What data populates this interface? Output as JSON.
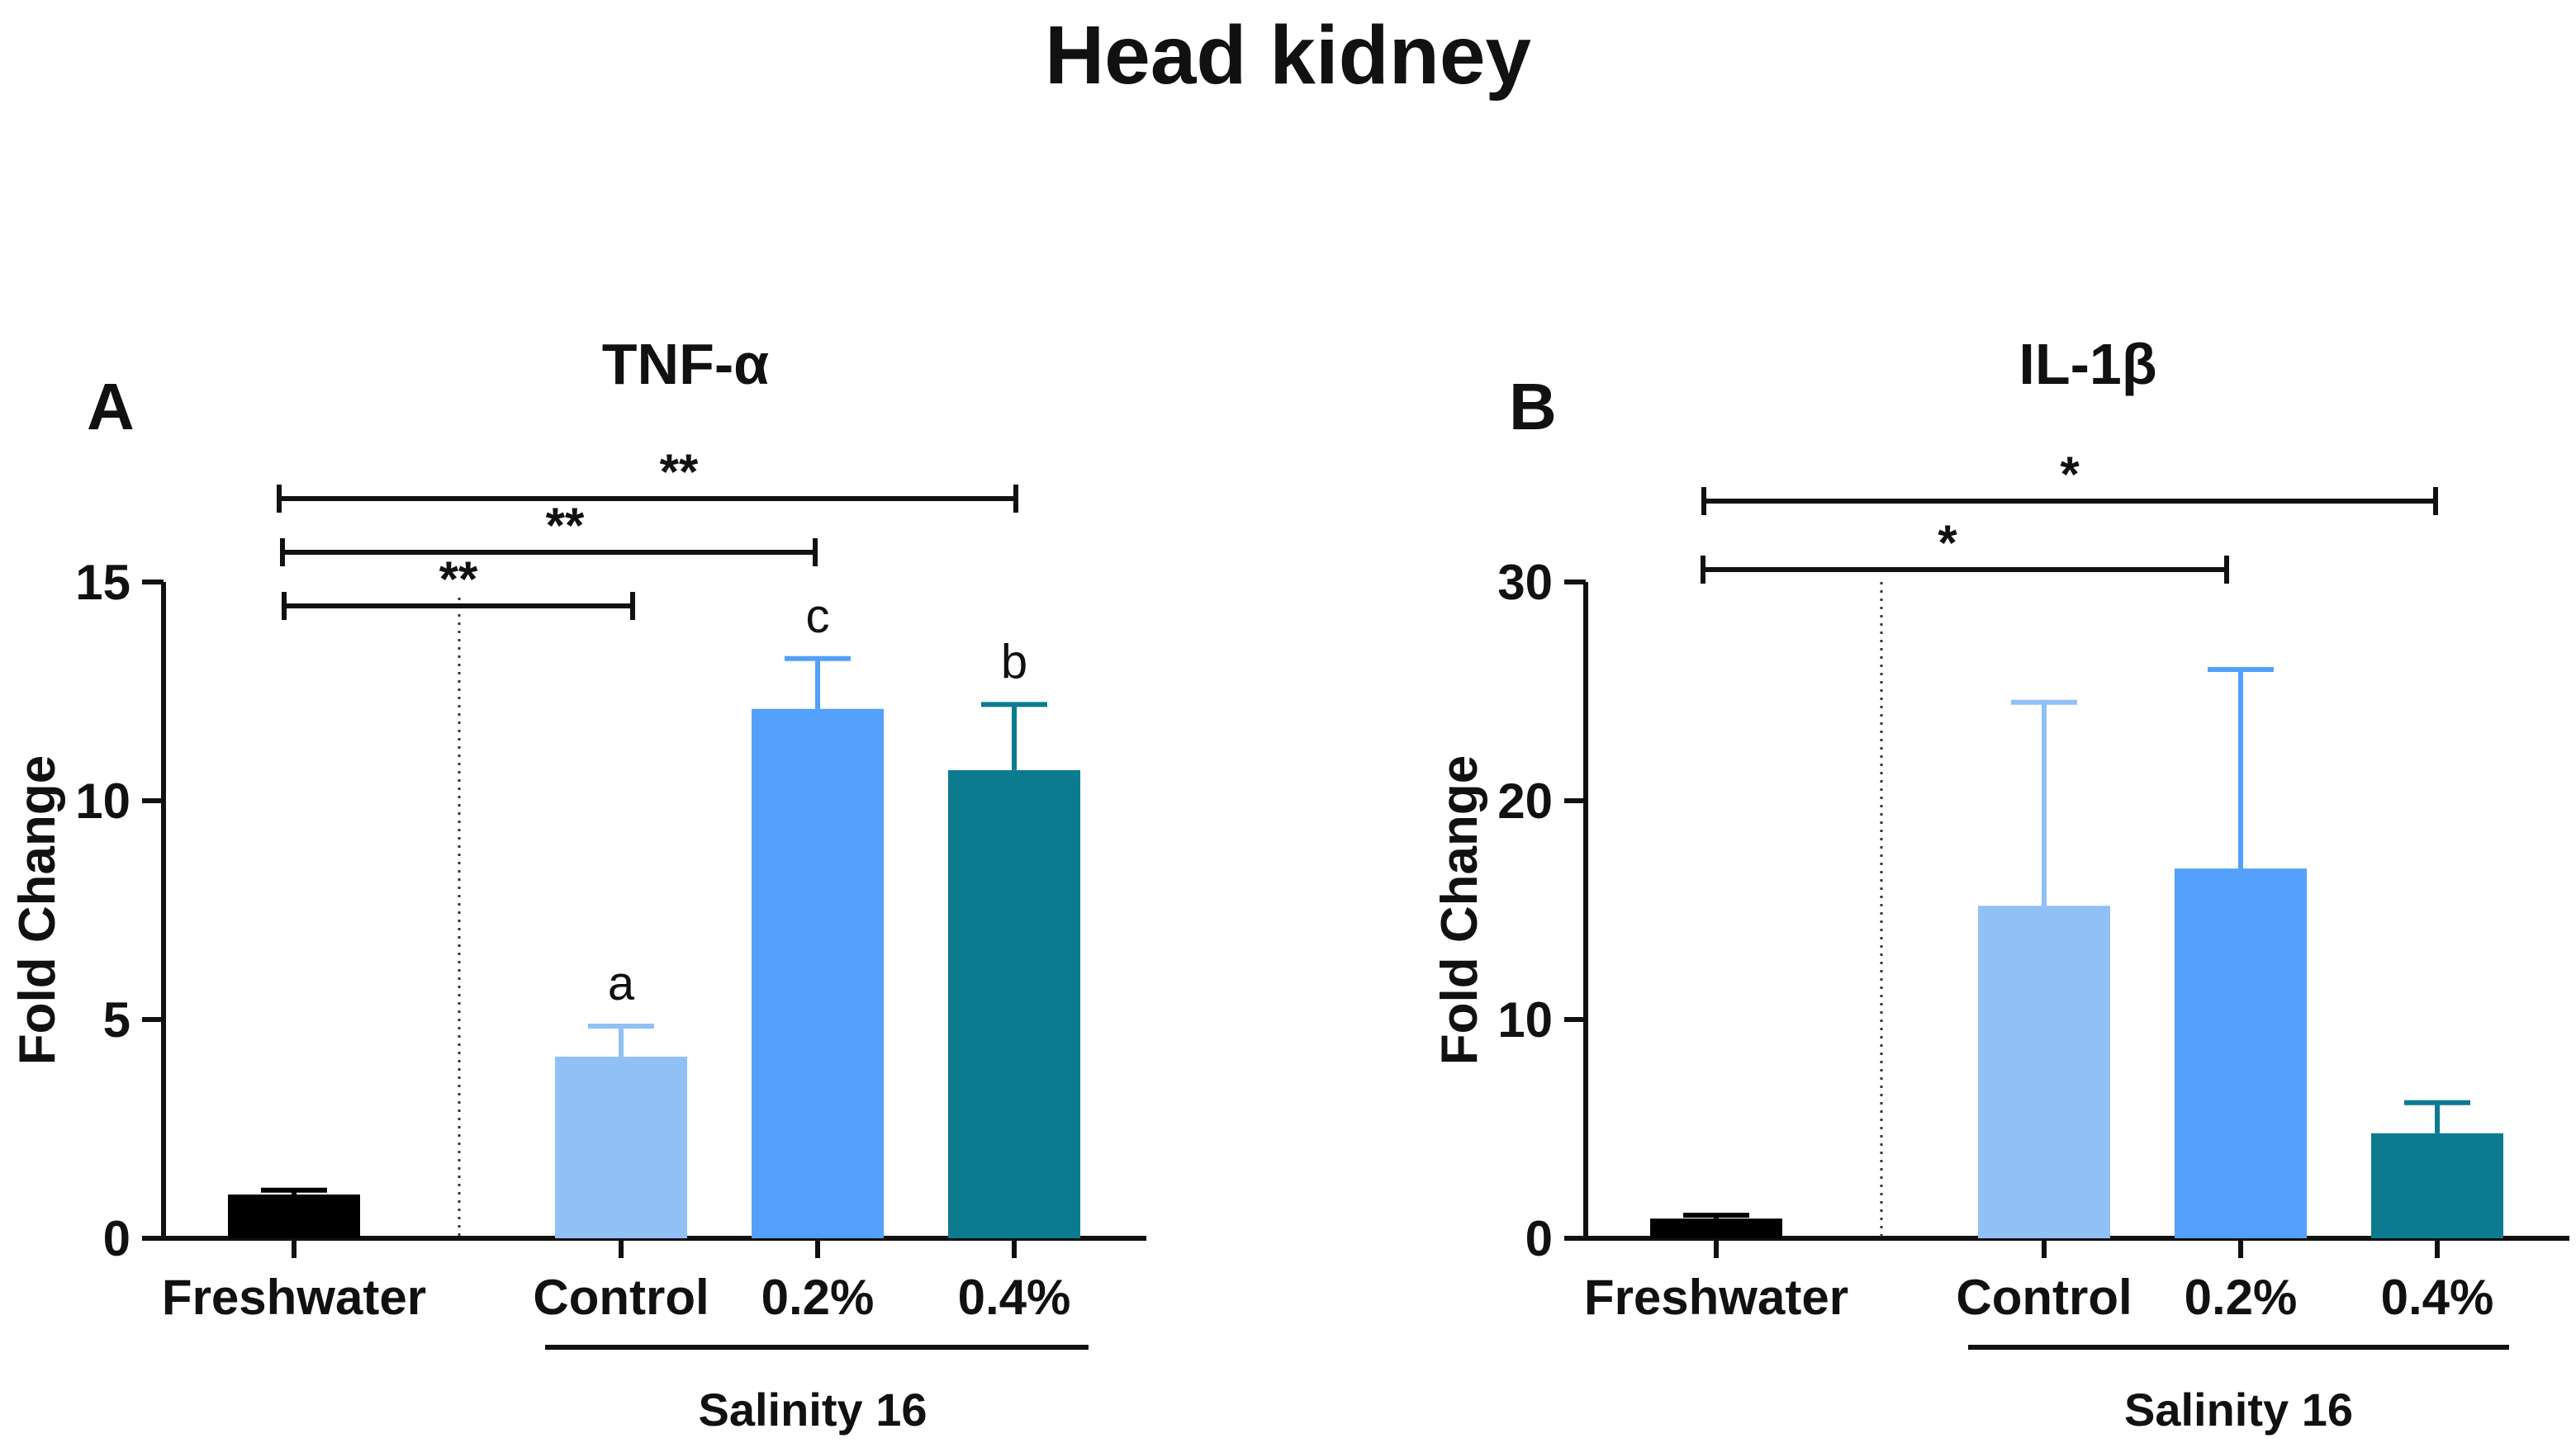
{
  "figure_title": "Head kidney",
  "chart_data": [
    {
      "type": "bar",
      "panel_label": "A",
      "title": "TNF-α",
      "ylabel": "Fold Change",
      "xlabel": "",
      "ylim": [
        0,
        15
      ],
      "yticks": [
        0,
        5,
        10,
        15
      ],
      "categories": [
        "Freshwater",
        "Control",
        "0.2%",
        "0.4%"
      ],
      "values": [
        1.0,
        4.15,
        12.1,
        10.7
      ],
      "errors": [
        0.1,
        0.7,
        1.15,
        1.5
      ],
      "colors": [
        "#000000",
        "#90c0f6",
        "#52a0f9",
        "#0c7b90"
      ],
      "letters": [
        "",
        "a",
        "c",
        "b"
      ],
      "group_label": "Salinity 16",
      "significance": [
        {
          "from": 0,
          "to": 1,
          "label": "**"
        },
        {
          "from": 0,
          "to": 2,
          "label": "**"
        },
        {
          "from": 0,
          "to": 3,
          "label": "**"
        }
      ]
    },
    {
      "type": "bar",
      "panel_label": "B",
      "title": "IL-1β",
      "ylabel": "Fold Change",
      "xlabel": "",
      "ylim": [
        0,
        30
      ],
      "yticks": [
        0,
        10,
        20,
        30
      ],
      "categories": [
        "Freshwater",
        "Control",
        "0.2%",
        "0.4%"
      ],
      "values": [
        0.9,
        15.2,
        16.9,
        4.8
      ],
      "errors": [
        0.15,
        9.3,
        9.1,
        1.4
      ],
      "colors": [
        "#000000",
        "#90c0f6",
        "#52a0f9",
        "#0c7b90"
      ],
      "letters": [
        "",
        "",
        "",
        ""
      ],
      "group_label": "Salinity 16",
      "significance": [
        {
          "from": 0,
          "to": 2,
          "label": "*"
        },
        {
          "from": 0,
          "to": 3,
          "label": "*"
        }
      ]
    }
  ]
}
